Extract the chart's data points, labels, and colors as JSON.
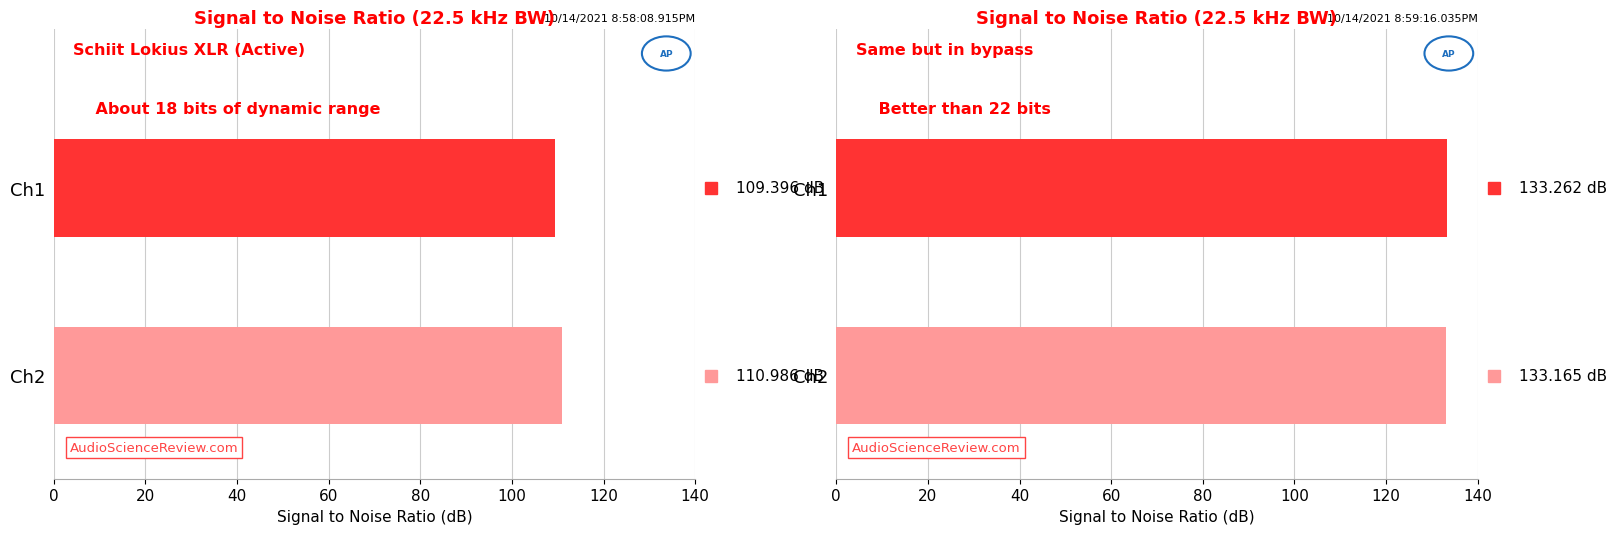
{
  "charts": [
    {
      "title": "Signal to Noise Ratio (22.5 kHz BW)",
      "timestamp": "10/14/2021 8:58:08.915PM",
      "annotation_line1": "Schiit Lokius XLR (Active)",
      "annotation_line2": "    About 18 bits of dynamic range",
      "channels": [
        "Ch1",
        "Ch2"
      ],
      "values": [
        109.396,
        110.986
      ],
      "bar_colors": [
        "#FF3333",
        "#FF9999"
      ],
      "xlabel": "Signal to Noise Ratio (dB)",
      "xlim": [
        0,
        140
      ],
      "xticks": [
        0,
        20,
        40,
        60,
        80,
        100,
        120,
        140
      ],
      "value_labels": [
        "109.396 dB",
        "110.986 dB"
      ]
    },
    {
      "title": "Signal to Noise Ratio (22.5 kHz BW)",
      "timestamp": "10/14/2021 8:59:16.035PM",
      "annotation_line1": "Same but in bypass",
      "annotation_line2": "    Better than 22 bits",
      "channels": [
        "Ch1",
        "Ch2"
      ],
      "values": [
        133.262,
        133.165
      ],
      "bar_colors": [
        "#FF3333",
        "#FF9999"
      ],
      "xlabel": "Signal to Noise Ratio (dB)",
      "xlim": [
        0,
        140
      ],
      "xticks": [
        0,
        20,
        40,
        60,
        80,
        100,
        120,
        140
      ],
      "value_labels": [
        "133.262 dB",
        "133.165 dB"
      ]
    }
  ],
  "title_color": "#FF0000",
  "timestamp_color": "#000000",
  "annotation_color": "#FF0000",
  "watermark_text": "AudioScienceReview.com",
  "watermark_color": "#FF4444",
  "background_color": "#FFFFFF",
  "plot_bg_color": "#FFFFFF",
  "grid_color": "#CCCCCC",
  "ap_logo_color": "#1E6FBF",
  "bar_height": 0.52
}
